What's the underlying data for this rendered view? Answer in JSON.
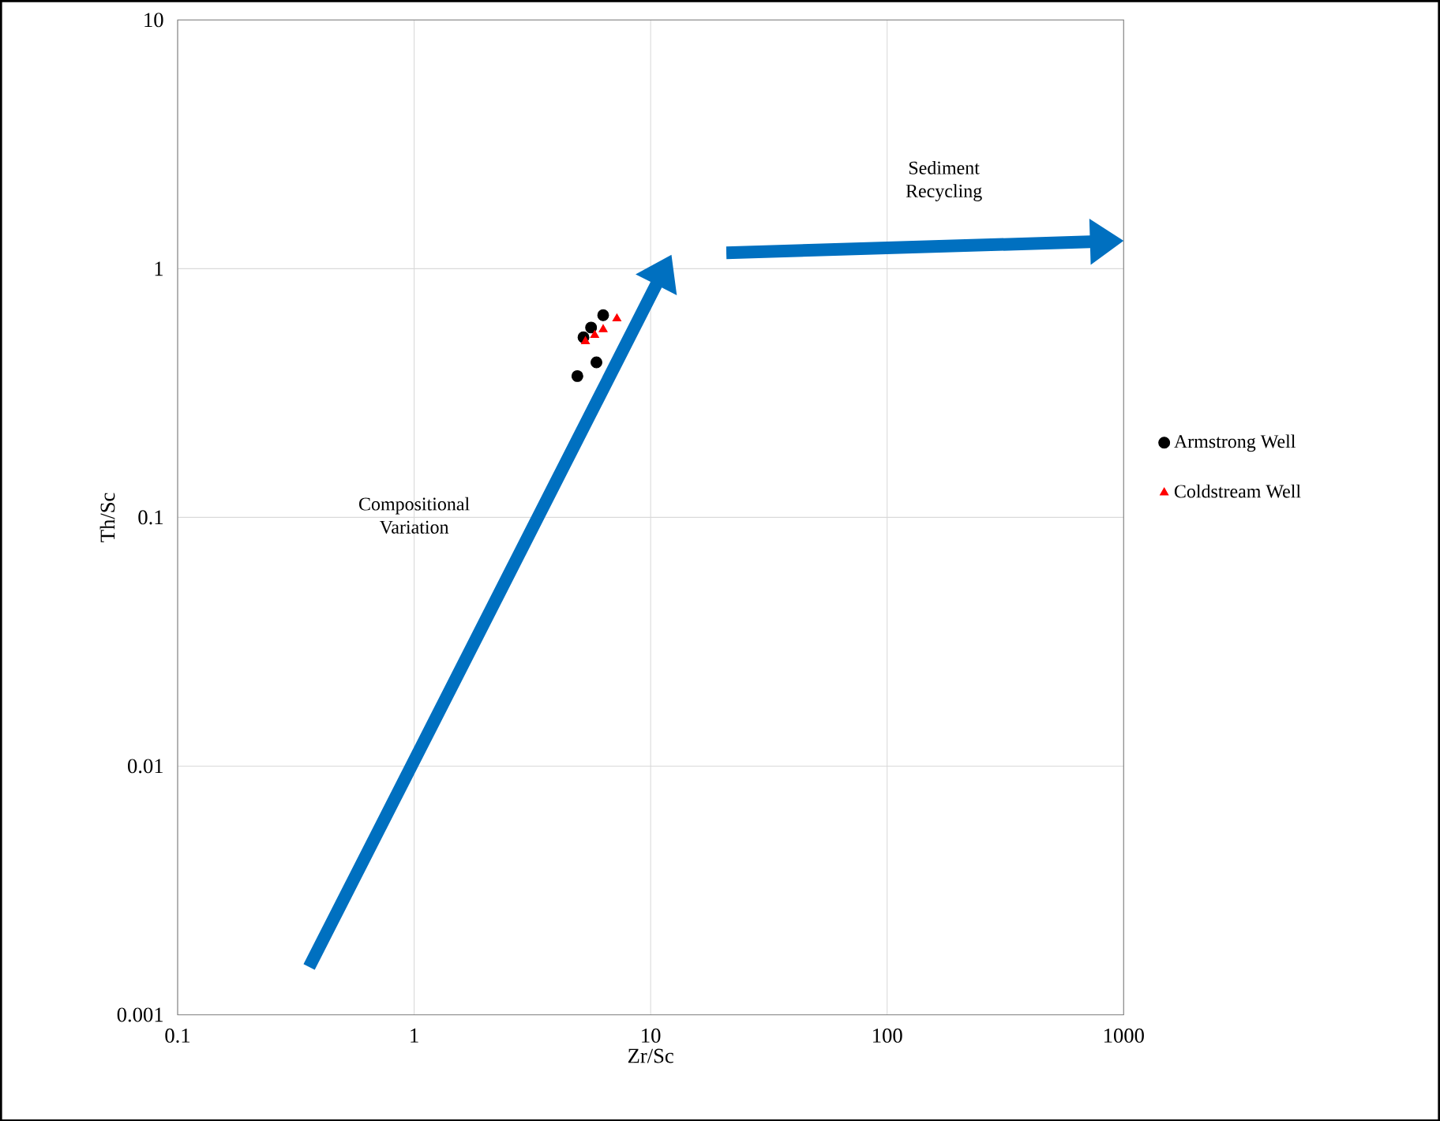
{
  "chart_data": {
    "type": "scatter",
    "xlabel": "Zr/Sc",
    "ylabel": "Th/Sc",
    "log": "xy",
    "grid": true,
    "legend": "right",
    "xlim": [
      0.1,
      1000
    ],
    "ylim": [
      0.001,
      10
    ],
    "xticks": [
      0.1,
      1,
      10,
      100,
      1000
    ],
    "yticks": [
      0.001,
      0.01,
      0.1,
      1,
      10
    ],
    "annotations": [
      "Compositional Variation",
      "Sediment Recycling"
    ],
    "series": [
      {
        "name": "Armstrong Well",
        "color": "#000000",
        "marker": "circle",
        "x": [
          6.3,
          5.6,
          5.2,
          5.9,
          4.9
        ],
        "values": [
          0.65,
          0.58,
          0.53,
          0.42,
          0.37
        ]
      },
      {
        "name": "Coldstream Well",
        "color": "#ff0000",
        "marker": "triangle",
        "x": [
          7.2,
          6.3,
          5.8,
          5.3
        ],
        "values": [
          0.63,
          0.57,
          0.54,
          0.51
        ]
      }
    ]
  }
}
